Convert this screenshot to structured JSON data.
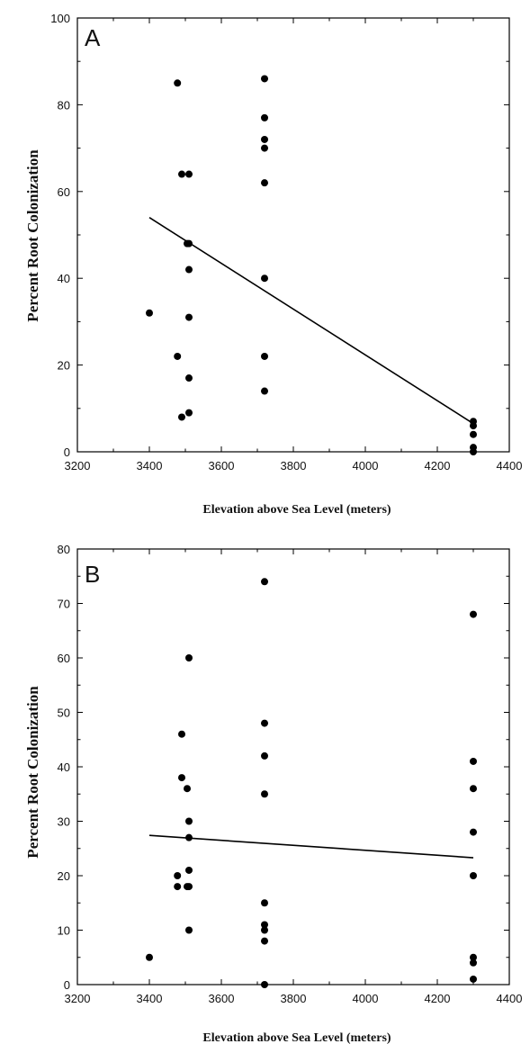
{
  "chart_data": [
    {
      "type": "scatter",
      "panel_label": "A",
      "xlabel": "Elevation above Sea Level (meters)",
      "ylabel": "Percent Root Colonization",
      "xlim": [
        3200,
        4400
      ],
      "ylim": [
        0,
        100
      ],
      "x_ticks": [
        3200,
        3400,
        3600,
        3800,
        4000,
        4200,
        4400
      ],
      "y_ticks": [
        0,
        20,
        40,
        60,
        80,
        100
      ],
      "x_minor_step": 100,
      "y_minor_step": 10,
      "grid": false,
      "marker_color": "#000000",
      "points": [
        {
          "x": 3400,
          "y": 32
        },
        {
          "x": 3478,
          "y": 85
        },
        {
          "x": 3478,
          "y": 22
        },
        {
          "x": 3490,
          "y": 64
        },
        {
          "x": 3490,
          "y": 8
        },
        {
          "x": 3505,
          "y": 48
        },
        {
          "x": 3510,
          "y": 64
        },
        {
          "x": 3510,
          "y": 48
        },
        {
          "x": 3510,
          "y": 42
        },
        {
          "x": 3510,
          "y": 31
        },
        {
          "x": 3510,
          "y": 17
        },
        {
          "x": 3510,
          "y": 9
        },
        {
          "x": 3720,
          "y": 86
        },
        {
          "x": 3720,
          "y": 77
        },
        {
          "x": 3720,
          "y": 72
        },
        {
          "x": 3720,
          "y": 70
        },
        {
          "x": 3720,
          "y": 62
        },
        {
          "x": 3720,
          "y": 40
        },
        {
          "x": 3720,
          "y": 22
        },
        {
          "x": 3720,
          "y": 14
        },
        {
          "x": 4300,
          "y": 7
        },
        {
          "x": 4300,
          "y": 6
        },
        {
          "x": 4300,
          "y": 4
        },
        {
          "x": 4300,
          "y": 1
        },
        {
          "x": 4300,
          "y": 0
        }
      ],
      "trendline": {
        "x": [
          3400,
          4300
        ],
        "y": [
          54,
          6.5
        ]
      }
    },
    {
      "type": "scatter",
      "panel_label": "B",
      "xlabel": "Elevation above Sea Level (meters)",
      "ylabel": "Percent Root Colonization",
      "xlim": [
        3200,
        4400
      ],
      "ylim": [
        0,
        80
      ],
      "x_ticks": [
        3200,
        3400,
        3600,
        3800,
        4000,
        4200,
        4400
      ],
      "y_ticks": [
        0,
        10,
        20,
        30,
        40,
        50,
        60,
        70,
        80
      ],
      "x_minor_step": 100,
      "y_minor_step": 5,
      "grid": false,
      "marker_color": "#000000",
      "points": [
        {
          "x": 3400,
          "y": 5
        },
        {
          "x": 3478,
          "y": 20
        },
        {
          "x": 3478,
          "y": 18
        },
        {
          "x": 3490,
          "y": 46
        },
        {
          "x": 3490,
          "y": 38
        },
        {
          "x": 3505,
          "y": 36
        },
        {
          "x": 3505,
          "y": 18
        },
        {
          "x": 3510,
          "y": 60
        },
        {
          "x": 3510,
          "y": 30
        },
        {
          "x": 3510,
          "y": 27
        },
        {
          "x": 3510,
          "y": 21
        },
        {
          "x": 3510,
          "y": 18
        },
        {
          "x": 3510,
          "y": 10
        },
        {
          "x": 3720,
          "y": 74
        },
        {
          "x": 3720,
          "y": 48
        },
        {
          "x": 3720,
          "y": 42
        },
        {
          "x": 3720,
          "y": 35
        },
        {
          "x": 3720,
          "y": 15
        },
        {
          "x": 3720,
          "y": 11
        },
        {
          "x": 3720,
          "y": 10
        },
        {
          "x": 3720,
          "y": 8
        },
        {
          "x": 3720,
          "y": 0
        },
        {
          "x": 4300,
          "y": 68
        },
        {
          "x": 4300,
          "y": 41
        },
        {
          "x": 4300,
          "y": 36
        },
        {
          "x": 4300,
          "y": 28
        },
        {
          "x": 4300,
          "y": 20
        },
        {
          "x": 4300,
          "y": 5
        },
        {
          "x": 4300,
          "y": 4
        },
        {
          "x": 4300,
          "y": 1
        }
      ],
      "trendline": {
        "x": [
          3400,
          4300
        ],
        "y": [
          27.4,
          23.3
        ]
      }
    }
  ]
}
